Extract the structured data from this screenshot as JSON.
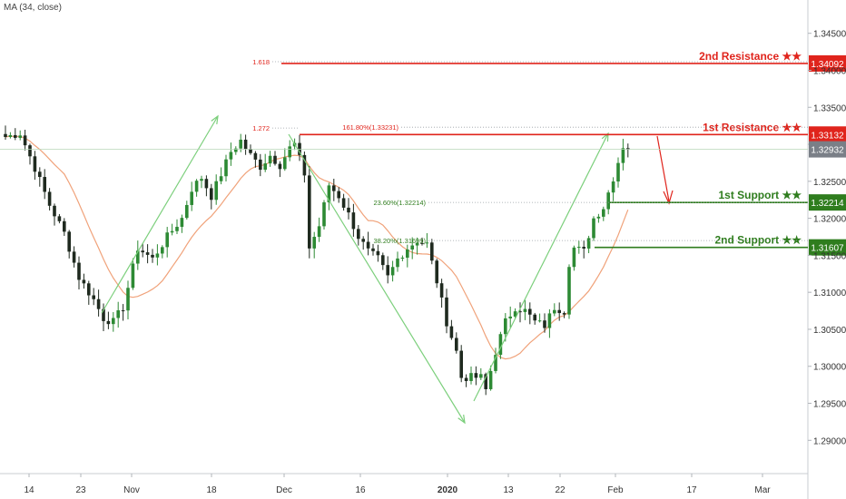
{
  "indicator_label": "MA (34, close)",
  "colors": {
    "up": "#2d8a34",
    "down": "#1f2a1f",
    "ma": "#f0a27a",
    "resistance": "#e0241c",
    "support": "#2f7d1e",
    "arrow": "#7ccf7c",
    "last_price": "#7a7f87",
    "fib_dotted": "#9aa0a6"
  },
  "chart_data": {
    "type": "candlestick",
    "y_axis": {
      "ylim": [
        1.2855,
        1.3495
      ],
      "tick_labels": [
        "1.34500",
        "1.34000",
        "1.33500",
        "1.33000",
        "1.32500",
        "1.32000",
        "1.31500",
        "1.31000",
        "1.30500",
        "1.30000",
        "1.29500",
        "1.29000"
      ],
      "tick_values": [
        1.345,
        1.34,
        1.335,
        1.33,
        1.325,
        1.32,
        1.315,
        1.31,
        1.305,
        1.3,
        1.295,
        1.29
      ]
    },
    "x_axis": {
      "tick_labels": [
        "14",
        "23",
        "Nov",
        "18",
        "Dec",
        "16",
        "2020",
        "13",
        "22",
        "Feb",
        "17",
        "Mar"
      ],
      "tick_bold": [
        false,
        false,
        false,
        false,
        false,
        false,
        true,
        false,
        false,
        false,
        false,
        false
      ]
    },
    "price_path": [
      [
        0,
        1.331
      ],
      [
        3,
        1.3315
      ],
      [
        6,
        1.3268
      ],
      [
        9,
        1.3218
      ],
      [
        12,
        1.318
      ],
      [
        15,
        1.312
      ],
      [
        18,
        1.309
      ],
      [
        20,
        1.3065
      ],
      [
        22,
        1.306
      ],
      [
        24,
        1.308
      ],
      [
        27,
        1.316
      ],
      [
        30,
        1.3145
      ],
      [
        33,
        1.3175
      ],
      [
        36,
        1.32
      ],
      [
        38,
        1.324
      ],
      [
        40,
        1.3255
      ],
      [
        42,
        1.323
      ],
      [
        44,
        1.326
      ],
      [
        46,
        1.329
      ],
      [
        48,
        1.3305
      ],
      [
        50,
        1.3285
      ],
      [
        52,
        1.327
      ],
      [
        54,
        1.3285
      ],
      [
        56,
        1.3272
      ],
      [
        58,
        1.3295
      ],
      [
        59,
        1.33
      ],
      [
        61,
        1.326
      ],
      [
        62,
        1.316
      ],
      [
        64,
        1.319
      ],
      [
        66,
        1.3245
      ],
      [
        68,
        1.323
      ],
      [
        70,
        1.3205
      ],
      [
        72,
        1.3175
      ],
      [
        74,
        1.3155
      ],
      [
        76,
        1.3145
      ],
      [
        78,
        1.312
      ],
      [
        80,
        1.3145
      ],
      [
        82,
        1.316
      ],
      [
        84,
        1.317
      ],
      [
        86,
        1.3165
      ],
      [
        88,
        1.3115
      ],
      [
        90,
        1.306
      ],
      [
        92,
        1.302
      ],
      [
        93,
        1.2985
      ],
      [
        95,
        1.2985
      ],
      [
        97,
        1.2985
      ],
      [
        98,
        1.2968
      ],
      [
        100,
        1.302
      ],
      [
        102,
        1.306
      ],
      [
        104,
        1.308
      ],
      [
        106,
        1.3075
      ],
      [
        108,
        1.306
      ],
      [
        110,
        1.3055
      ],
      [
        112,
        1.308
      ],
      [
        114,
        1.3075
      ],
      [
        115,
        1.314
      ],
      [
        116,
        1.316
      ],
      [
        118,
        1.3155
      ],
      [
        120,
        1.32
      ],
      [
        122,
        1.3215
      ],
      [
        124,
        1.3255
      ],
      [
        126,
        1.3298
      ],
      [
        127,
        1.3293
      ]
    ],
    "last_price": 1.32932,
    "levels": [
      {
        "name": "2nd Resistance",
        "label": "2nd Resistance ★★",
        "price": 1.34092,
        "price_label": "1.34092",
        "type": "resistance",
        "fib_label": "1.618"
      },
      {
        "name": "1st Resistance",
        "label": "1st Resistance ★★",
        "price": 1.33132,
        "price_label": "1.33132",
        "type": "resistance",
        "fib_label": "161.80%(1.33231)",
        "fib_price": 1.33231
      },
      {
        "name": "1st Support",
        "label": "1st Support ★★",
        "price": 1.32214,
        "price_label": "1.32214",
        "type": "support",
        "fib_label": "23.60%(1.32214)"
      },
      {
        "name": "2nd Support",
        "label": "2nd Support ★★",
        "price": 1.31607,
        "price_label": "1.31607",
        "type": "support",
        "fib_label": "38.20%(1.31699)",
        "fib_price": 1.31699
      }
    ],
    "annotations": {
      "fib_272": "1.272",
      "last_price_label": "1.32932"
    }
  }
}
